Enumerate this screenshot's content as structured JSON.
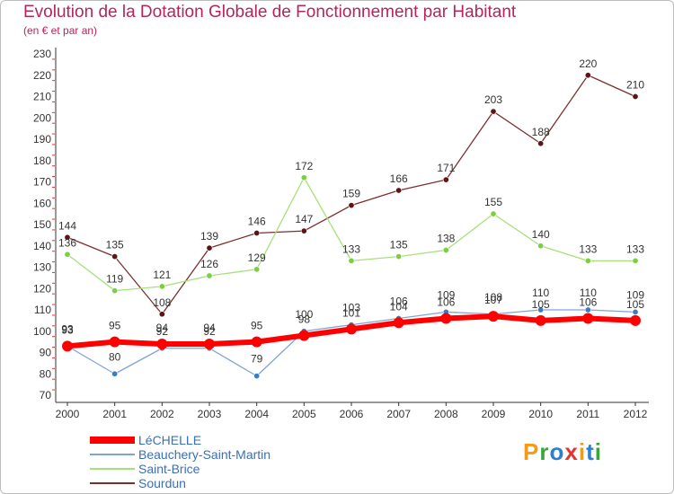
{
  "header": {
    "title": "Evolution de la Dotation Globale de Fonctionnement par Habitant",
    "subtitle": "(en € et par an)"
  },
  "chart_data": {
    "type": "line",
    "title": "Evolution de la Dotation Globale de Fonctionnement par Habitant",
    "subtitle": "(en € et par an)",
    "xlabel": "",
    "ylabel": "",
    "ylim": [
      70,
      230
    ],
    "yticks": [
      70,
      80,
      90,
      100,
      110,
      120,
      130,
      140,
      150,
      160,
      170,
      180,
      190,
      200,
      210,
      220,
      230
    ],
    "grid": false,
    "legend_position": "bottom-left",
    "categories": [
      "2000",
      "2001",
      "2002",
      "2003",
      "2004",
      "2005",
      "2006",
      "2007",
      "2008",
      "2009",
      "2010",
      "2011",
      "2012"
    ],
    "series": [
      {
        "name": "LéCHELLE",
        "color": "#ff0000",
        "marker": "#ff0000",
        "width": 6,
        "label_offset": 14,
        "values": [
          93,
          95,
          94,
          94,
          95,
          98,
          101,
          104,
          106,
          107,
          105,
          106,
          105
        ]
      },
      {
        "name": "Beauchery-Saint-Martin",
        "color": "#7fa4d4",
        "marker": "#3b7dc4",
        "width": 1.3,
        "label_offset": 15,
        "values": [
          93,
          80,
          92,
          92,
          79,
          100,
          103,
          106,
          109,
          108,
          110,
          110,
          109
        ]
      },
      {
        "name": "Saint-Brice",
        "color": "#a6e07a",
        "marker": "#7ccf3f",
        "width": 1.3,
        "label_offset": 9,
        "values": [
          136,
          119,
          121,
          126,
          129,
          172,
          133,
          135,
          138,
          155,
          140,
          133,
          133
        ]
      },
      {
        "name": "Sourdun",
        "color": "#7a2f2f",
        "marker": "#5e1414",
        "width": 1.3,
        "label_offset": 9,
        "values": [
          144,
          135,
          108,
          139,
          146,
          147,
          159,
          166,
          171,
          203,
          188,
          220,
          210
        ]
      }
    ]
  },
  "legend": {
    "items": [
      {
        "label": "LéCHELLE",
        "color": "#ff0000"
      },
      {
        "label": "Beauchery-Saint-Martin",
        "color": "#7fa4d4"
      },
      {
        "label": "Saint-Brice",
        "color": "#a6e07a"
      },
      {
        "label": "Sourdun",
        "color": "#7a2f2f"
      }
    ]
  },
  "branding": {
    "logo_text": "Proxiti",
    "colors": [
      "#f39a1b",
      "#3aa53a",
      "#2a7fd0",
      "#e3342f",
      "#f39a1b",
      "#2a7fd0",
      "#3aa53a"
    ]
  }
}
